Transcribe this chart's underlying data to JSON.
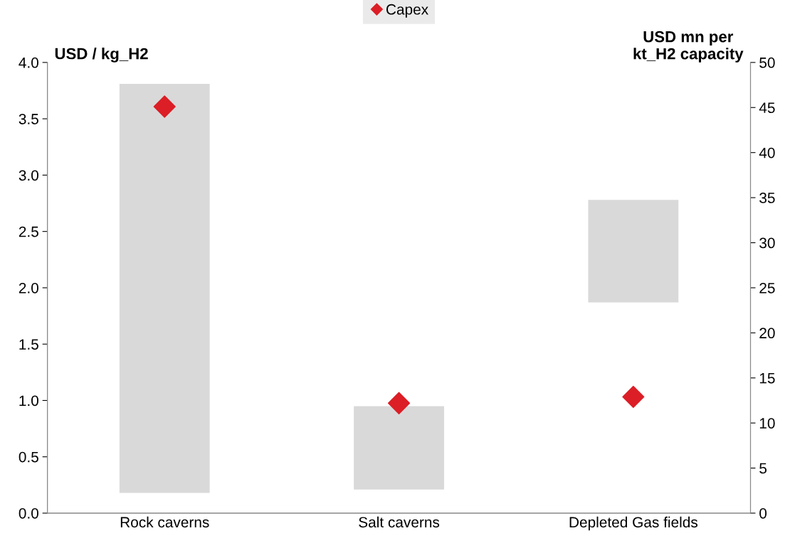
{
  "chart_data": {
    "type": "bar",
    "ylabel": "USD / kg_H2",
    "y2label": "USD mn per\nkt_H2 capacity",
    "categories": [
      "Rock caverns",
      "Salt caverns",
      "Depleted Gas fields"
    ],
    "series": [
      {
        "color": "#d9d9d9",
        "base": [
          0.18,
          0.21,
          1.87
        ],
        "values": [
          3.63,
          0.74,
          0.91
        ]
      },
      {
        "type": "scatter",
        "name": "Capex",
        "color": "#dc1e26",
        "axis": "y2",
        "marker": "diamond",
        "x": [
          "Rock caverns",
          "Salt caverns",
          "Depleted Gas fields"
        ],
        "values": [
          45.1,
          12.2,
          12.9
        ]
      }
    ],
    "ylim": [
      0,
      4
    ],
    "yticks": [
      {
        "value": 0,
        "label": "0.0"
      },
      0.5,
      {
        "value": 1,
        "label": "1.0"
      },
      1.5,
      {
        "value": 2,
        "label": "2.0"
      },
      2.5,
      {
        "value": 3,
        "label": "3.0"
      },
      3.5,
      {
        "value": 4,
        "label": "4.0"
      }
    ],
    "y2lim": [
      0,
      50
    ],
    "y2ticks": [
      0,
      5,
      10,
      15,
      20,
      25,
      30,
      35,
      40,
      45,
      50
    ],
    "grid": false,
    "legend": "top center"
  }
}
